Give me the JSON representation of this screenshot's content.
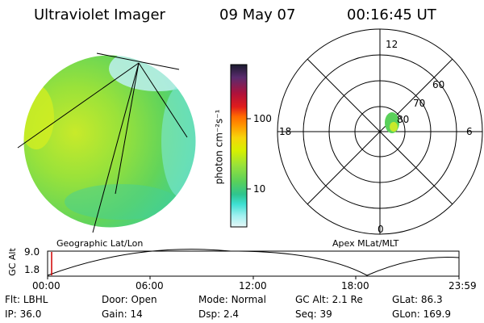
{
  "header": {
    "title": "Ultraviolet Imager",
    "date": "09 May 07",
    "time": "00:16:45 UT"
  },
  "colorbar": {
    "unit_label": "photon cm⁻²s⁻¹",
    "ticks": [
      "100",
      "10"
    ],
    "colors": [
      "#1a1a2e",
      "#5a2b6e",
      "#b0113a",
      "#e01c1c",
      "#ff6a00",
      "#ff9a00",
      "#f7d40a",
      "#d6f000",
      "#99e23a",
      "#5ad05a",
      "#2fc58f",
      "#3ee0d2",
      "#9ff0f0",
      "#e6f7f7"
    ]
  },
  "polar": {
    "mlt_labels": {
      "top": "12",
      "left": "18",
      "right": "6",
      "bottom": "0"
    },
    "lat_labels": [
      "60",
      "70",
      "80"
    ]
  },
  "labels": {
    "geographic": "Geographic Lat/Lon",
    "apex": "Apex MLat/MLT"
  },
  "orbit": {
    "axis_label": "GC Alt",
    "y_ticks": [
      "9.0",
      "1.8"
    ],
    "x_ticks": [
      "00:00",
      "06:00",
      "12:00",
      "18:00",
      "23:59"
    ],
    "current_time_color": "#d00000"
  },
  "status": {
    "row1": [
      {
        "key": "Flt:",
        "value": "LBHL"
      },
      {
        "key": "Door:",
        "value": "Open"
      },
      {
        "key": "Mode:",
        "value": "Normal"
      },
      {
        "key": "GC Alt:",
        "value": "2.1 Re"
      },
      {
        "key": "GLat:",
        "value": "86.3"
      }
    ],
    "row2": [
      {
        "key": "IP:",
        "value": "36.0"
      },
      {
        "key": "Gain:",
        "value": "14"
      },
      {
        "key": "Dsp:",
        "value": "2.4"
      },
      {
        "key": "Seq:",
        "value": "39"
      },
      {
        "key": "GLon:",
        "value": "169.9"
      }
    ]
  }
}
